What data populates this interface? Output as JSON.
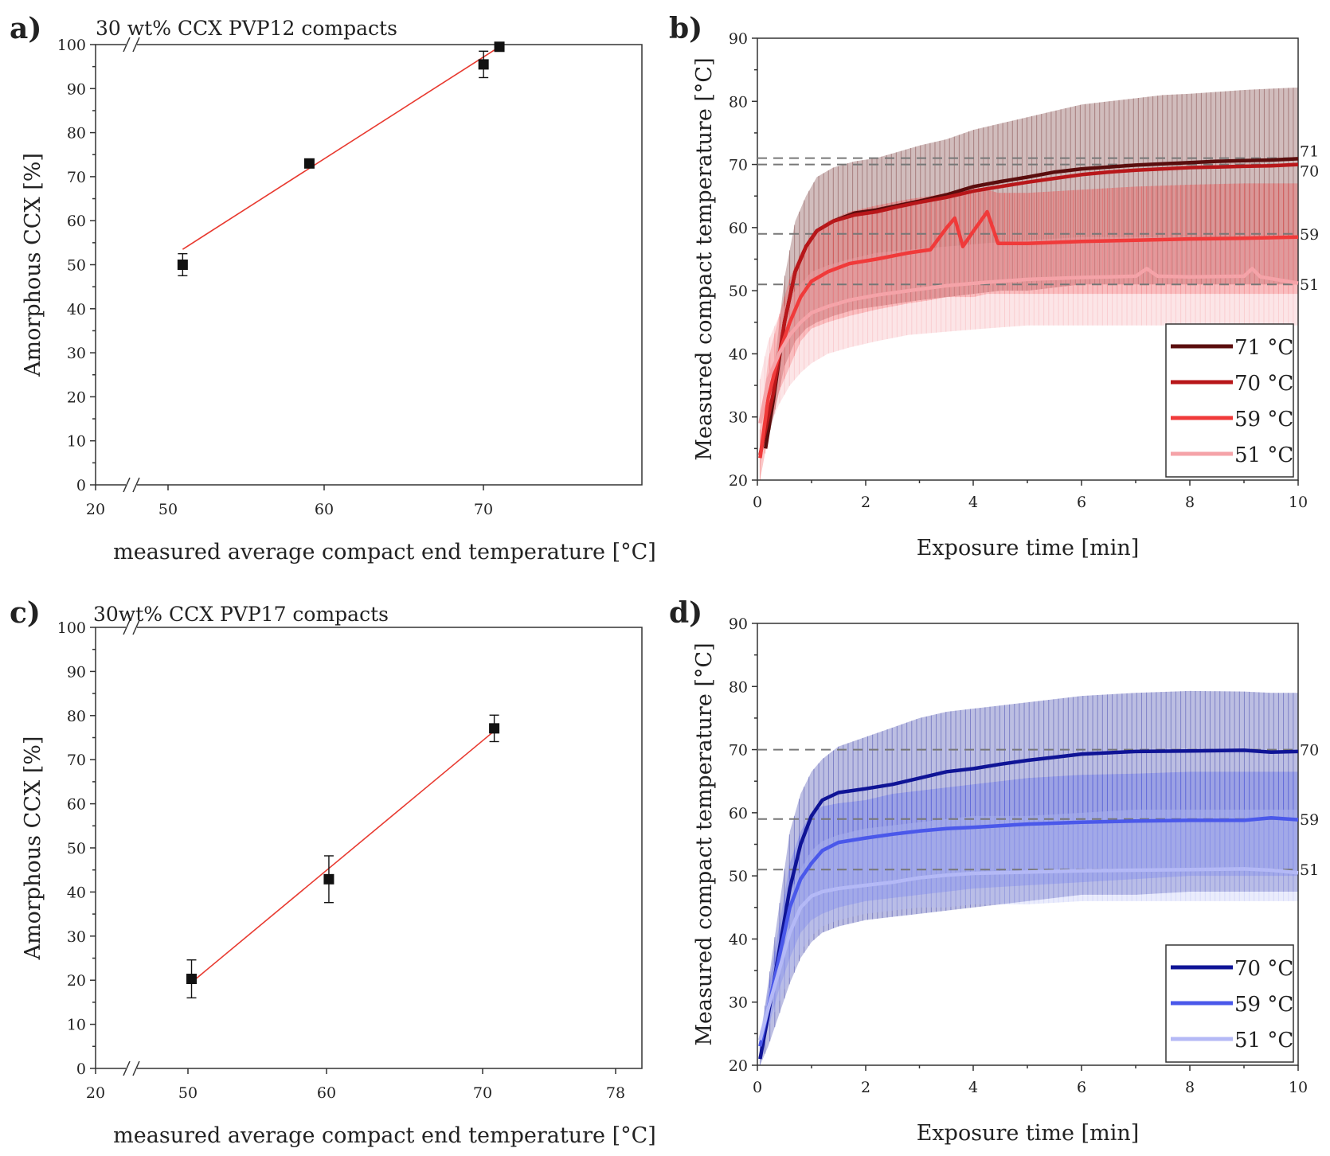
{
  "chart_data": [
    {
      "panel": "a)",
      "type": "scatter",
      "title": "30 wt% CCX PVP12 compacts",
      "xlabel": "measured average compact end temperature [°C]",
      "ylabel": "Amorphous CCX [%]",
      "x_ticks": [
        "20",
        "50",
        "60",
        "70"
      ],
      "y_ticks": [
        "0",
        "10",
        "20",
        "30",
        "40",
        "50",
        "60",
        "70",
        "80",
        "90",
        "100"
      ],
      "xlim": [
        45.5,
        80
      ],
      "ylim": [
        0,
        100
      ],
      "axis_break": true,
      "points": [
        {
          "x": 51,
          "y": 50,
          "err": 2.5
        },
        {
          "x": 59,
          "y": 73,
          "err": 0.8
        },
        {
          "x": 70,
          "y": 95.5,
          "err": 3
        },
        {
          "x": 71,
          "y": 99.5,
          "err": 0.5
        }
      ],
      "fit": {
        "x": [
          51,
          71
        ],
        "y": [
          53.5,
          99.5
        ],
        "color": "#e8392f"
      }
    },
    {
      "panel": "b)",
      "type": "line",
      "xlabel": "Exposure time [min]",
      "ylabel": "Measured compact temperature [°C]",
      "x_ticks": [
        "0",
        "2",
        "4",
        "6",
        "8",
        "10"
      ],
      "y_ticks": [
        "20",
        "30",
        "40",
        "50",
        "60",
        "70",
        "80",
        "90"
      ],
      "xlim": [
        0,
        10
      ],
      "ylim": [
        20,
        90
      ],
      "reference_lines": [
        71,
        70,
        59,
        51
      ],
      "end_labels": [
        "71",
        "70",
        "59",
        "51"
      ],
      "legend_position": "bottom-right",
      "series": [
        {
          "name": "71 °C",
          "color": "#5a0d0d",
          "x": [
            0.15,
            0.3,
            0.5,
            0.7,
            0.9,
            1.1,
            1.4,
            1.8,
            2.2,
            2.6,
            3,
            3.5,
            4,
            4.5,
            5,
            5.5,
            6,
            6.5,
            7,
            7.5,
            8,
            8.5,
            9,
            9.5,
            10
          ],
          "y": [
            25,
            33,
            45,
            53,
            57,
            59.5,
            61,
            62.3,
            62.8,
            63.5,
            64.2,
            65.2,
            66.5,
            67.3,
            68,
            68.8,
            69.3,
            69.6,
            69.9,
            70.1,
            70.3,
            70.5,
            70.6,
            70.7,
            70.9
          ],
          "band": [
            [
              25,
              25
            ],
            [
              30,
              37
            ],
            [
              38,
              52
            ],
            [
              42,
              61
            ],
            [
              44,
              65
            ],
            [
              45,
              68
            ],
            [
              46,
              69.5
            ],
            [
              47,
              70.5
            ],
            [
              47.5,
              71
            ],
            [
              48,
              72
            ],
            [
              48.5,
              73
            ],
            [
              49,
              74
            ],
            [
              49.5,
              75.5
            ],
            [
              50,
              76.5
            ],
            [
              50,
              77.5
            ],
            [
              50.5,
              78.5
            ],
            [
              51,
              79.5
            ],
            [
              51,
              80
            ],
            [
              51,
              80.5
            ],
            [
              51,
              81
            ],
            [
              51,
              81.2
            ],
            [
              51,
              81.5
            ],
            [
              51,
              81.8
            ],
            [
              51,
              82
            ],
            [
              51,
              82.2
            ]
          ]
        },
        {
          "name": "70 °C",
          "color": "#b8171a",
          "x": [
            0.05,
            0.3,
            0.5,
            0.7,
            0.9,
            1.1,
            1.4,
            1.8,
            2.2,
            2.6,
            3,
            3.5,
            4,
            4.5,
            5,
            5.5,
            6,
            6.5,
            7,
            7.5,
            8,
            8.5,
            9,
            9.5,
            10
          ],
          "y": [
            24,
            34,
            45,
            53,
            57,
            59.5,
            61,
            62,
            62.5,
            63.3,
            64,
            64.8,
            65.8,
            66.5,
            67.2,
            67.8,
            68.4,
            68.8,
            69.1,
            69.3,
            69.5,
            69.6,
            69.7,
            69.8,
            70
          ]
        },
        {
          "name": "59 °C",
          "color": "#f03a3a",
          "x": [
            0.05,
            0.2,
            0.4,
            0.6,
            0.8,
            1,
            1.3,
            1.7,
            2.2,
            2.8,
            3.2,
            3.5,
            3.65,
            3.8,
            4,
            4.25,
            4.45,
            5,
            6,
            7,
            8,
            9,
            10
          ],
          "y": [
            23.5,
            33,
            40,
            45,
            49,
            51.5,
            53,
            54.3,
            55,
            56,
            56.5,
            60,
            61.5,
            57,
            59.5,
            62.5,
            57.5,
            57.5,
            57.8,
            58,
            58.2,
            58.3,
            58.5
          ],
          "band": [
            [
              20,
              28
            ],
            [
              27,
              39
            ],
            [
              34,
              46
            ],
            [
              38,
              52
            ],
            [
              42,
              56
            ],
            [
              44,
              59
            ],
            [
              45,
              61
            ],
            [
              46,
              62.5
            ],
            [
              47,
              63.5
            ],
            [
              48,
              64.5
            ],
            [
              48.5,
              65
            ],
            [
              49,
              65.5
            ],
            [
              49,
              65.8
            ],
            [
              49,
              65.5
            ],
            [
              49,
              65.5
            ],
            [
              49.5,
              66
            ],
            [
              49.5,
              65.5
            ],
            [
              49.5,
              65.5
            ],
            [
              49.5,
              66
            ],
            [
              49.5,
              66.5
            ],
            [
              49.5,
              66.8
            ],
            [
              49.5,
              67
            ],
            [
              49.5,
              67
            ]
          ]
        },
        {
          "name": "51 °C",
          "color": "#f5a3a8",
          "x": [
            0.05,
            0.2,
            0.4,
            0.6,
            0.8,
            1,
            1.3,
            1.7,
            2.2,
            2.8,
            3.5,
            4.2,
            5,
            6,
            7,
            7.2,
            7.4,
            8,
            9,
            9.15,
            9.3,
            10
          ],
          "y": [
            29,
            36,
            40,
            43,
            45,
            46.5,
            47.5,
            48.5,
            49.3,
            50,
            50.8,
            51.3,
            51.8,
            52.1,
            52.3,
            53.5,
            52.3,
            52.2,
            52.3,
            53.5,
            52.2,
            51.2
          ],
          "band": [
            [
              22,
              36
            ],
            [
              28,
              42
            ],
            [
              32,
              46
            ],
            [
              35,
              49
            ],
            [
              37,
              51
            ],
            [
              38.5,
              53
            ],
            [
              40,
              54
            ],
            [
              41,
              55
            ],
            [
              42,
              56
            ],
            [
              43,
              56.5
            ],
            [
              43.5,
              57
            ],
            [
              44,
              57.5
            ],
            [
              44.5,
              58
            ],
            [
              44.5,
              58.5
            ],
            [
              44.5,
              58.5
            ],
            [
              44.5,
              58.5
            ],
            [
              44.5,
              58.5
            ],
            [
              44.5,
              58.5
            ],
            [
              44.5,
              58.5
            ],
            [
              44.5,
              58.5
            ],
            [
              44.5,
              58.5
            ],
            [
              44.5,
              58.5
            ]
          ]
        }
      ]
    },
    {
      "panel": "c)",
      "type": "scatter",
      "title": "30wt% CCX PVP17 compacts",
      "xlabel": "measured average compact end temperature [°C]",
      "ylabel": "Amorphous CCX [%]",
      "x_ticks": [
        "20",
        "50",
        "60",
        "70",
        "78"
      ],
      "y_ticks": [
        "0",
        "10",
        "20",
        "30",
        "40",
        "50",
        "60",
        "70",
        "80",
        "90",
        "100"
      ],
      "xlim": [
        43,
        80
      ],
      "ylim": [
        0,
        100
      ],
      "axis_break": true,
      "points": [
        {
          "x": 49.5,
          "y": 20.3,
          "err": 4.3
        },
        {
          "x": 58.8,
          "y": 42.9,
          "err": 5.3
        },
        {
          "x": 70,
          "y": 77.1,
          "err": 3
        }
      ],
      "fit": {
        "x": [
          49.5,
          70
        ],
        "y": [
          19.5,
          76.5
        ],
        "color": "#e8392f"
      }
    },
    {
      "panel": "d)",
      "type": "line",
      "xlabel": "Exposure time [min]",
      "ylabel": "Measured compact temperature [°C]",
      "x_ticks": [
        "0",
        "2",
        "4",
        "6",
        "8",
        "10"
      ],
      "y_ticks": [
        "20",
        "30",
        "40",
        "50",
        "60",
        "70",
        "80",
        "90"
      ],
      "xlim": [
        0,
        10
      ],
      "ylim": [
        20,
        90
      ],
      "reference_lines": [
        70,
        59,
        51
      ],
      "end_labels": [
        "70",
        "59",
        "51"
      ],
      "legend_position": "bottom-right",
      "series": [
        {
          "name": "70 °C",
          "color": "#0f1496",
          "x": [
            0.05,
            0.2,
            0.4,
            0.6,
            0.8,
            1,
            1.2,
            1.5,
            2,
            2.5,
            3,
            3.5,
            4,
            4.5,
            5,
            5.5,
            6,
            7,
            8,
            9,
            9.5,
            10
          ],
          "y": [
            21,
            28,
            38,
            48,
            55,
            59.5,
            62,
            63.2,
            63.8,
            64.5,
            65.5,
            66.5,
            67,
            67.7,
            68.3,
            68.8,
            69.3,
            69.7,
            69.8,
            69.9,
            69.6,
            69.7
          ],
          "band": [
            [
              20,
              24
            ],
            [
              23,
              33
            ],
            [
              28,
              45
            ],
            [
              33,
              57
            ],
            [
              37,
              63
            ],
            [
              39.5,
              66.5
            ],
            [
              41,
              68.5
            ],
            [
              42,
              70.5
            ],
            [
              43,
              72
            ],
            [
              43.5,
              73.5
            ],
            [
              44,
              75
            ],
            [
              44.5,
              76
            ],
            [
              45,
              76.5
            ],
            [
              45.5,
              77
            ],
            [
              46,
              77.5
            ],
            [
              46.5,
              78
            ],
            [
              47,
              78.5
            ],
            [
              47,
              79
            ],
            [
              47.5,
              79.3
            ],
            [
              47.5,
              79.2
            ],
            [
              47.5,
              79
            ],
            [
              47.5,
              79
            ]
          ]
        },
        {
          "name": "59 °C",
          "color": "#4a58ea",
          "x": [
            0.05,
            0.2,
            0.4,
            0.6,
            0.8,
            1,
            1.2,
            1.5,
            2,
            2.5,
            3,
            3.5,
            4,
            5,
            6,
            7,
            8,
            9,
            9.5,
            10
          ],
          "y": [
            23,
            29,
            37,
            45,
            49.5,
            52,
            54,
            55.3,
            56,
            56.6,
            57.1,
            57.5,
            57.7,
            58.2,
            58.5,
            58.7,
            58.8,
            58.8,
            59.2,
            58.9
          ],
          "band": [
            [
              22,
              24
            ],
            [
              26,
              32
            ],
            [
              32,
              42
            ],
            [
              37,
              52
            ],
            [
              41,
              57
            ],
            [
              43,
              60
            ],
            [
              44,
              61
            ],
            [
              45,
              61.5
            ],
            [
              46,
              62
            ],
            [
              46.5,
              63
            ],
            [
              47,
              63.5
            ],
            [
              47.5,
              64
            ],
            [
              48,
              64.5
            ],
            [
              48.5,
              65.5
            ],
            [
              49,
              66
            ],
            [
              49.5,
              66.2
            ],
            [
              50,
              66.5
            ],
            [
              50,
              66.5
            ],
            [
              50,
              66.5
            ],
            [
              50,
              66.5
            ]
          ]
        },
        {
          "name": "51 °C",
          "color": "#b4b9f6",
          "x": [
            0.05,
            0.2,
            0.4,
            0.6,
            0.8,
            1,
            1.2,
            1.5,
            2,
            2.5,
            3,
            3.5,
            4,
            5,
            6,
            7,
            8,
            9,
            9.5,
            10
          ],
          "y": [
            24,
            29,
            35,
            41,
            45,
            46.8,
            47.5,
            48,
            48.5,
            49,
            49.7,
            50.1,
            50.4,
            50.6,
            50.8,
            50.9,
            51,
            51.1,
            50.9,
            50.5
          ],
          "band": [
            [
              22.5,
              25.5
            ],
            [
              26,
              31
            ],
            [
              30,
              39
            ],
            [
              34,
              47
            ],
            [
              38,
              51
            ],
            [
              40.5,
              54
            ],
            [
              42,
              55.5
            ],
            [
              43,
              56.5
            ],
            [
              44,
              57.5
            ],
            [
              44.5,
              58
            ],
            [
              45,
              58.5
            ],
            [
              45,
              59
            ],
            [
              45.5,
              59.5
            ],
            [
              45.5,
              59.5
            ],
            [
              46,
              60
            ],
            [
              46,
              60.5
            ],
            [
              46,
              60.5
            ],
            [
              46,
              60.5
            ],
            [
              46,
              60.5
            ],
            [
              46,
              60.5
            ]
          ]
        }
      ]
    }
  ]
}
